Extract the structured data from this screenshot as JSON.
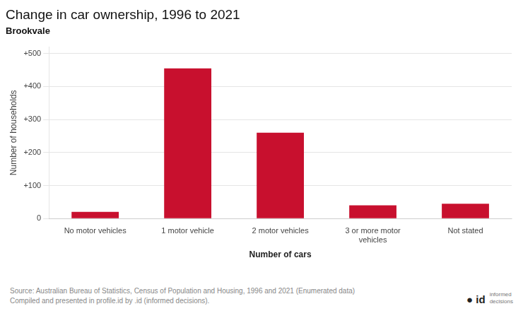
{
  "chart_data": {
    "type": "bar",
    "title": "Change in car ownership, 1996 to 2021",
    "subtitle": "Brookvale",
    "categories": [
      "No motor vehicles",
      "1 motor vehicle",
      "2 motor vehicles",
      "3 or more motor\nvehicles",
      "Not stated"
    ],
    "values": [
      20,
      455,
      260,
      40,
      45
    ],
    "color": "#c8102e",
    "xlabel": "Number of cars",
    "ylabel": "Number of households",
    "ylim": [
      0,
      520
    ],
    "yticks": [
      0,
      {
        "value": 100,
        "label": "+100"
      },
      {
        "value": 200,
        "label": "+200"
      },
      {
        "value": 300,
        "label": "+300"
      },
      {
        "value": 400,
        "label": "+400"
      },
      {
        "value": 500,
        "label": "+500"
      }
    ],
    "grid": true,
    "annotations": [
      "Source: Australian Bureau of Statistics, Census of Population and Housing, 1996 and 2021 (Enumerated data)\nCompiled and presented in profile.id by .id (informed decisions).",
      "● id",
      "informed\ndecisions"
    ]
  }
}
